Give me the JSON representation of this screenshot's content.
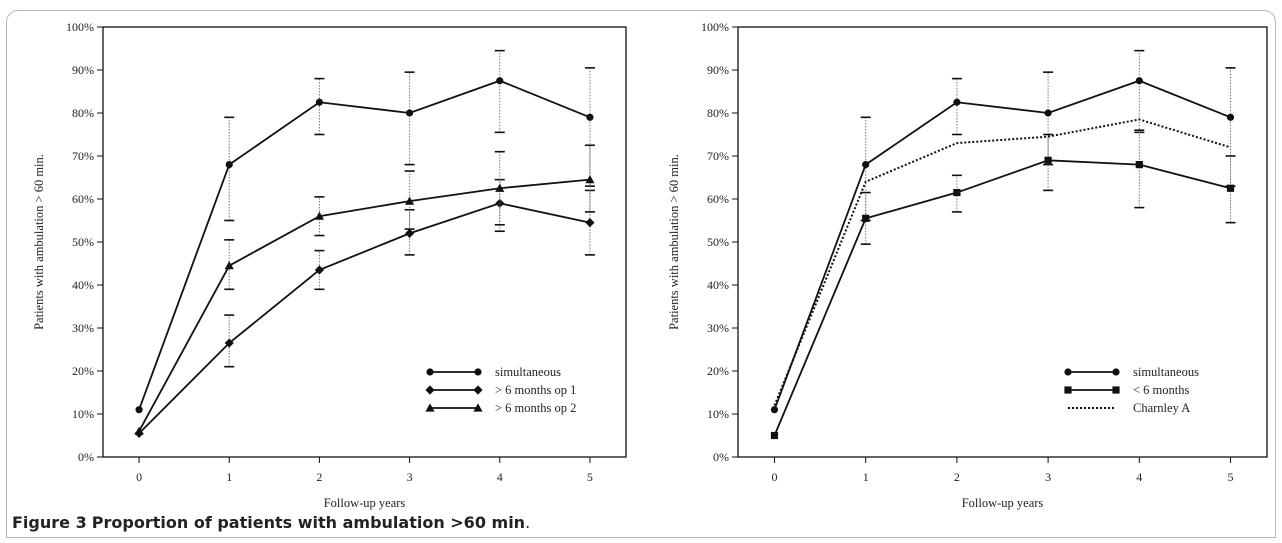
{
  "figure": {
    "caption_label": "Figure 3",
    "caption_text": "Proportion of patients with ambulation >60 min",
    "caption_end": "."
  },
  "chart_data": [
    {
      "type": "line",
      "title": "",
      "xlabel": "Follow-up years",
      "ylabel": "Patients with ambulation > 60 min.",
      "x": [
        0,
        1,
        2,
        3,
        4,
        5
      ],
      "xlim": [
        -0.4,
        5.4
      ],
      "ylim": [
        0,
        100
      ],
      "yticks": [
        "0%",
        "10%",
        "20%",
        "30%",
        "40%",
        "50%",
        "60%",
        "70%",
        "80%",
        "90%",
        "100%"
      ],
      "grid": false,
      "legend_position": "bottom-right",
      "series": [
        {
          "name": "simultaneous",
          "marker": "circle",
          "style": "solid",
          "values": [
            11,
            68,
            82.5,
            80,
            87.5,
            79
          ],
          "err_low": [
            null,
            55,
            75,
            68,
            75.5,
            63
          ],
          "err_high": [
            null,
            79,
            88,
            89.5,
            94.5,
            90.5
          ]
        },
        {
          "name": "> 6 months op 1",
          "marker": "diamond",
          "style": "solid",
          "values": [
            5.5,
            26.5,
            43.5,
            52,
            59,
            54.5
          ],
          "err_low": [
            null,
            21,
            39,
            47,
            52.5,
            47
          ],
          "err_high": [
            null,
            33,
            48,
            57.5,
            64.5,
            62
          ]
        },
        {
          "name": "> 6 months op 2",
          "marker": "triangle",
          "style": "solid",
          "values": [
            6,
            44.5,
            56,
            59.5,
            62.5,
            64.5
          ],
          "err_low": [
            null,
            39,
            51.5,
            53,
            54,
            57
          ],
          "err_high": [
            null,
            50.5,
            60.5,
            66.5,
            71,
            72.5
          ]
        }
      ]
    },
    {
      "type": "line",
      "title": "",
      "xlabel": "Follow-up years",
      "ylabel": "Patients with ambulation > 60 min.",
      "x": [
        0,
        1,
        2,
        3,
        4,
        5
      ],
      "xlim": [
        -0.4,
        5.4
      ],
      "ylim": [
        0,
        100
      ],
      "yticks": [
        "0%",
        "10%",
        "20%",
        "30%",
        "40%",
        "50%",
        "60%",
        "70%",
        "80%",
        "90%",
        "100%"
      ],
      "grid": false,
      "legend_position": "bottom-left",
      "series": [
        {
          "name": "simultaneous",
          "marker": "circle",
          "style": "solid",
          "values": [
            11,
            68,
            82.5,
            80,
            87.5,
            79
          ],
          "err_low": [
            null,
            55,
            75,
            68,
            75.5,
            63
          ],
          "err_high": [
            null,
            79,
            88,
            89.5,
            94.5,
            90.5
          ]
        },
        {
          "name": "< 6 months",
          "marker": "square",
          "style": "solid",
          "values": [
            5,
            55.5,
            61.5,
            69,
            68,
            62.5
          ],
          "err_low": [
            null,
            49.5,
            57,
            62,
            58,
            54.5
          ],
          "err_high": [
            null,
            61.5,
            65.5,
            75,
            76,
            70
          ]
        },
        {
          "name": "Charnley A",
          "marker": "none",
          "style": "dotted",
          "values": [
            12,
            64,
            73,
            74.5,
            78.5,
            72
          ],
          "err_low": [
            null,
            null,
            null,
            null,
            null,
            null
          ],
          "err_high": [
            null,
            null,
            null,
            null,
            null,
            null
          ]
        }
      ]
    }
  ]
}
